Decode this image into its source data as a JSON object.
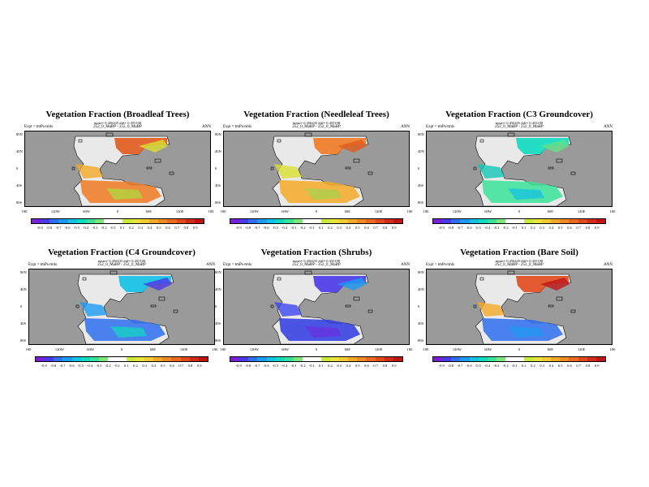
{
  "panels": [
    {
      "title": "Vegetation Fraction (Broadleaf Trees)",
      "sub": "mean= 0.456435 diff= 0.455198",
      "expt": "Expt = tmPs-tmls",
      "run": "252_0_MaBP - 252_0_MaBP",
      "season": "ANN"
    },
    {
      "title": "Vegetation Fraction (Needleleaf Trees)",
      "sub": "mean= 0.456435 diff= 0.455198",
      "expt": "Expt = tmPs-tmls",
      "run": "252_0_MaBP - 252_0_MaBP",
      "season": "ANN"
    },
    {
      "title": "Vegetation Fraction (C3 Groundcover)",
      "sub": "mean= 0.456435 diff= 0.455198",
      "expt": "Expt = tmPs-tmls",
      "run": "252_0_MaBP - 252_0_MaBP",
      "season": "ANN"
    },
    {
      "title": "Vegetation Fraction (C4 Groundcover)",
      "sub": "mean= 0.456435 diff= 0.455198",
      "expt": "Expt = tmPs-tmls",
      "run": "252_0_MaBP - 252_0_MaBP",
      "season": "ANN"
    },
    {
      "title": "Vegetation Fraction (Shrubs)",
      "sub": "mean= 0.456435 diff= 0.455198",
      "expt": "Expt = tmPs-tmls",
      "run": "252_0_MaBP - 252_0_MaBP",
      "season": "ANN"
    },
    {
      "title": "Vegetation Fraction (Bare Soil)",
      "sub": "mean= 0.456435 diff= 0.455198",
      "expt": "Expt = tmPs-tmls",
      "run": "252_0_MaBP - 252_0_MaBP",
      "season": "ANN"
    }
  ],
  "axes": {
    "lat_ticks": [
      "80N",
      "40N",
      "0",
      "40S",
      "80S"
    ],
    "lon_ticks": [
      "180",
      "120W",
      "60W",
      "0",
      "60E",
      "120E",
      "180"
    ]
  },
  "colorbar": {
    "labels": [
      "-0.9",
      "-0.8",
      "-0.7",
      "-0.6",
      "-0.5",
      "-0.4",
      "-0.3",
      "-0.2",
      "-0.1",
      "0.1",
      "0.2",
      "0.3",
      "0.4",
      "0.5",
      "0.6",
      "0.7",
      "0.8",
      "0.9"
    ],
    "colors": [
      "#7a1fd8",
      "#4a3ae8",
      "#2f6ef0",
      "#1c9bf2",
      "#11c1e6",
      "#10dcc0",
      "#3ae39a",
      "#7ee77a",
      "#ffffff",
      "#ffffff",
      "#c8ea3c",
      "#e8e53a",
      "#f5cb2f",
      "#f5a928",
      "#f08a22",
      "#ec6a1f",
      "#e24a1c",
      "#d42a18",
      "#c01515"
    ]
  }
}
